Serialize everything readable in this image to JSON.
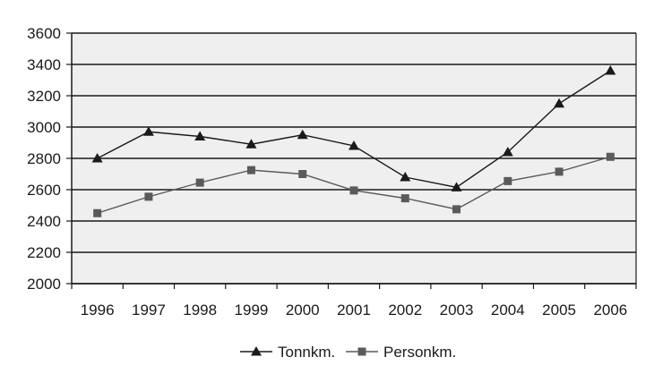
{
  "chart_data": {
    "type": "line",
    "categories": [
      "1996",
      "1997",
      "1998",
      "1999",
      "2000",
      "2001",
      "2002",
      "2003",
      "2004",
      "2005",
      "2006"
    ],
    "series": [
      {
        "name": "Tonnkm.",
        "marker": "triangle",
        "color": "#1a1a1a",
        "values": [
          2800,
          2970,
          2940,
          2890,
          2950,
          2880,
          2680,
          2615,
          2840,
          3150,
          3360
        ]
      },
      {
        "name": "Personkm.",
        "marker": "square",
        "color": "#5a5a5a",
        "values": [
          2450,
          2555,
          2645,
          2725,
          2700,
          2595,
          2545,
          2475,
          2655,
          2715,
          2810
        ]
      }
    ],
    "ylim": [
      2000,
      3600
    ],
    "yticks": [
      "2000",
      "2200",
      "2400",
      "2600",
      "2800",
      "3000",
      "3200",
      "3400",
      "3600"
    ],
    "grid": true,
    "legend_position": "bottom",
    "plot_background": "#efefef"
  }
}
